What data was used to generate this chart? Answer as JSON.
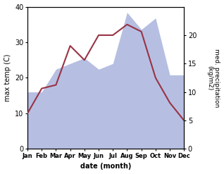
{
  "months": [
    "Jan",
    "Feb",
    "Mar",
    "Apr",
    "May",
    "Jun",
    "Jul",
    "Aug",
    "Sep",
    "Oct",
    "Nov",
    "Dec"
  ],
  "max_temp": [
    10,
    17,
    18,
    29,
    25,
    32,
    32,
    35,
    33,
    20,
    13,
    8
  ],
  "precipitation": [
    10,
    10,
    14,
    15,
    16,
    14,
    15,
    24,
    21,
    23,
    13,
    13
  ],
  "temp_color": "#993344",
  "precip_fill_color": "#aab4dd",
  "temp_ylim": [
    0,
    40
  ],
  "precip_ylim": [
    0,
    25
  ],
  "precip_yticks": [
    0,
    5,
    10,
    15,
    20
  ],
  "temp_yticks": [
    0,
    10,
    20,
    30,
    40
  ],
  "xlabel": "date (month)",
  "ylabel_left": "max temp (C)",
  "ylabel_right": "med. precipitation\n(kg/m2)",
  "figsize": [
    3.18,
    2.47
  ],
  "dpi": 100
}
